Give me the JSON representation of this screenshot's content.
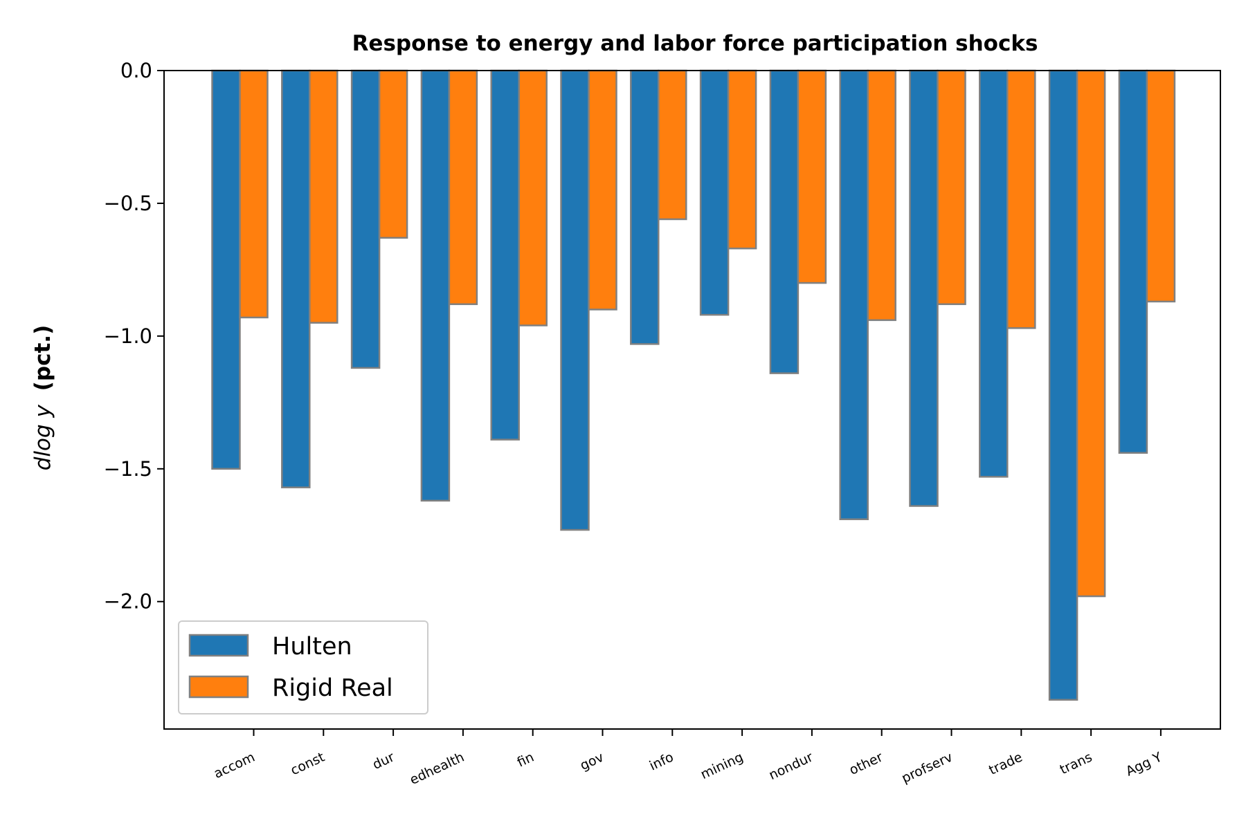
{
  "chart_data": {
    "type": "bar",
    "title": "Response to energy and labor force participation shocks",
    "ylabel_italic": "dlog y",
    "ylabel_bold": "(pct.)",
    "xlabel": "",
    "categories": [
      "accom",
      "const",
      "dur",
      "edhealth",
      "fin",
      "gov",
      "info",
      "mining",
      "nondur",
      "other",
      "profserv",
      "trade",
      "trans",
      "Agg Y"
    ],
    "series": [
      {
        "name": "Hulten",
        "color": "#1f77b4",
        "values": [
          -1.5,
          -1.57,
          -1.12,
          -1.62,
          -1.39,
          -1.73,
          -1.03,
          -0.92,
          -1.14,
          -1.69,
          -1.64,
          -1.53,
          -2.37,
          -1.44
        ]
      },
      {
        "name": "Rigid Real",
        "color": "#ff7f0e",
        "values": [
          -0.93,
          -0.95,
          -0.63,
          -0.88,
          -0.96,
          -0.9,
          -0.56,
          -0.67,
          -0.8,
          -0.94,
          -0.88,
          -0.97,
          -1.98,
          -0.87
        ]
      }
    ],
    "ylim": [
      -2.48,
      0.0
    ],
    "yticks": [
      0.0,
      -0.5,
      -1.0,
      -1.5,
      -2.0
    ],
    "ytick_labels": [
      "0.0",
      "−0.5",
      "−1.0",
      "−1.5",
      "−2.0"
    ],
    "bar_edge_color": "#808080",
    "grid": false,
    "legend_position": "lower-left"
  }
}
